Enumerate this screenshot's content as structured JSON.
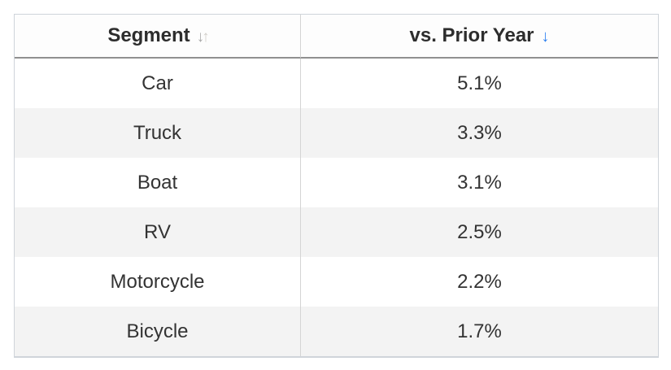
{
  "table": {
    "columns": [
      {
        "label": "Segment",
        "sort_state": "unsorted"
      },
      {
        "label": "vs. Prior Year",
        "sort_state": "descending"
      }
    ],
    "rows": [
      {
        "segment": "Car",
        "value": "5.1%"
      },
      {
        "segment": "Truck",
        "value": "3.3%"
      },
      {
        "segment": "Boat",
        "value": "3.1%"
      },
      {
        "segment": "RV",
        "value": "2.5%"
      },
      {
        "segment": "Motorcycle",
        "value": "2.2%"
      },
      {
        "segment": "Bicycle",
        "value": "1.7%"
      }
    ]
  },
  "icons": {
    "down_glyph": "↓",
    "up_glyph": "↑"
  },
  "colors": {
    "stripe": "#f3f3f3",
    "outer_border": "#cfd4da",
    "header_underline": "#909090",
    "column_divider": "#d4d4d4",
    "text": "#333333",
    "sort_active_blue": "#2e80f0",
    "sort_inactive_gray": "#a9a9a9"
  },
  "chart_data": {
    "type": "table",
    "columns": [
      "Segment",
      "vs. Prior Year"
    ],
    "rows": [
      [
        "Car",
        "5.1%"
      ],
      [
        "Truck",
        "3.3%"
      ],
      [
        "Boat",
        "3.1%"
      ],
      [
        "RV",
        "2.5%"
      ],
      [
        "Motorcycle",
        "2.2%"
      ],
      [
        "Bicycle",
        "1.7%"
      ]
    ],
    "values_numeric": [
      5.1,
      3.3,
      3.1,
      2.5,
      2.2,
      1.7
    ],
    "sort": {
      "column": "vs. Prior Year",
      "direction": "descending"
    }
  }
}
